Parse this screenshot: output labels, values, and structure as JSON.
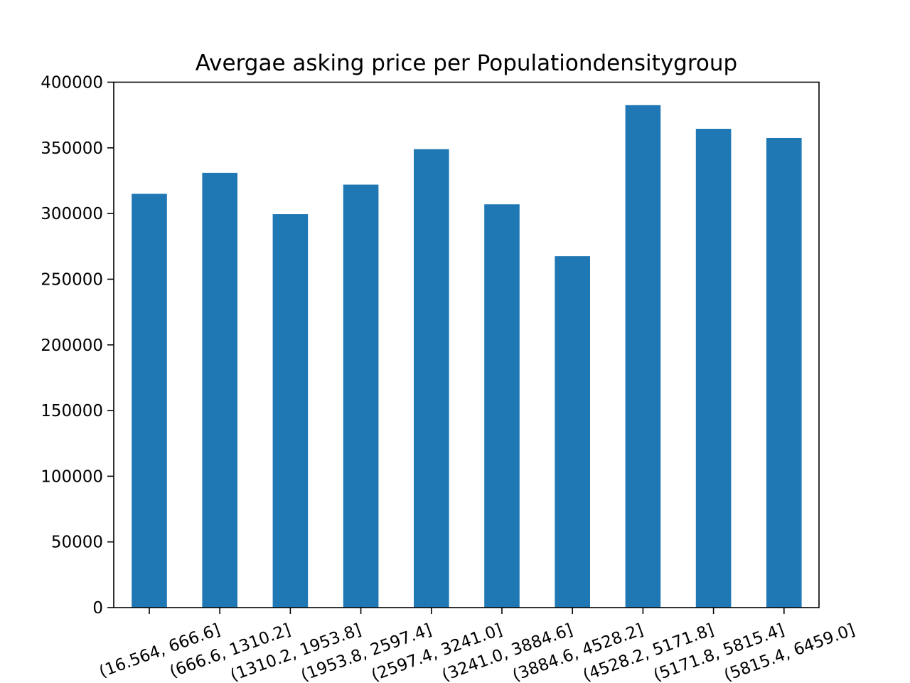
{
  "chart_data": {
    "type": "bar",
    "title": "Avergae asking price per Populationdensitygroup",
    "xlabel": "",
    "ylabel": "",
    "categories": [
      "(16.564, 666.6]",
      "(666.6, 1310.2]",
      "(1310.2, 1953.8]",
      "(1953.8, 2597.4]",
      "(2597.4, 3241.0]",
      "(3241.0, 3884.6]",
      "(3884.6, 4528.2]",
      "(4528.2, 5171.8]",
      "(5171.8, 5815.4]",
      "(5815.4, 6459.0]"
    ],
    "values": [
      315000,
      331000,
      299500,
      322000,
      349000,
      307000,
      267500,
      382500,
      364500,
      357500
    ],
    "ylim": [
      0,
      400000
    ],
    "yticks": [
      0,
      50000,
      100000,
      150000,
      200000,
      250000,
      300000,
      350000,
      400000
    ],
    "ytick_labels": [
      "0",
      "50000",
      "100000",
      "150000",
      "200000",
      "250000",
      "300000",
      "350000",
      "400000"
    ],
    "bar_color": "#1f77b4",
    "grid": false,
    "legend": "none"
  }
}
